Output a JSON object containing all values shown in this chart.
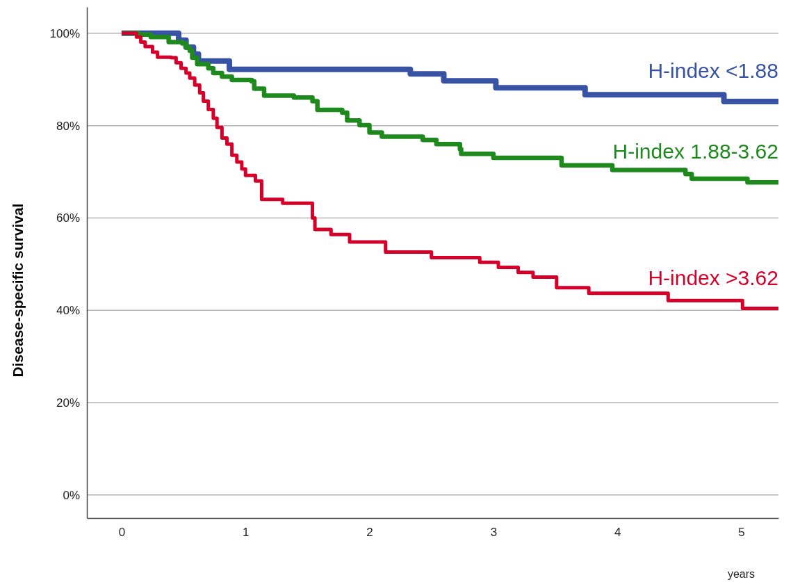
{
  "chart_data": {
    "type": "step",
    "ylabel": "Disease-specific survival",
    "xlabel": "years",
    "xlim": [
      -0.28,
      5.3
    ],
    "xticks": [
      0,
      1,
      2,
      3,
      4,
      5
    ],
    "ylim": [
      -5,
      105.7
    ],
    "yticks": [
      {
        "value": 0,
        "label": "0%"
      },
      {
        "value": 20,
        "label": "20%"
      },
      {
        "value": 40,
        "label": "40%"
      },
      {
        "value": 60,
        "label": "60%"
      },
      {
        "value": 80,
        "label": "80%"
      },
      {
        "value": 100,
        "label": "100%"
      }
    ],
    "grid": "y",
    "legend": false,
    "marker": "none",
    "line_style": "solid",
    "series": [
      {
        "name": "H-index <1.88",
        "color": "#3953a4",
        "x": [
          0,
          0.46,
          0.52,
          0.58,
          0.62,
          0.87,
          2.33,
          2.6,
          3.02,
          3.74,
          4.86,
          5.3
        ],
        "values": [
          100,
          98.5,
          97,
          95.5,
          94,
          92.2,
          91.2,
          89.7,
          88.2,
          86.7,
          85.2,
          85.2
        ]
      },
      {
        "name": "H-index 1.88-3.62",
        "color": "#1e8a1e",
        "x": [
          0,
          0.14,
          0.235,
          0.38,
          0.49,
          0.52,
          0.55,
          0.57,
          0.61,
          0.7,
          0.74,
          0.81,
          0.89,
          1.05,
          1.07,
          1.15,
          1.39,
          1.54,
          1.58,
          1.78,
          1.82,
          1.92,
          2.0,
          2.1,
          2.43,
          2.54,
          2.73,
          2.74,
          3.0,
          3.55,
          3.96,
          4.55,
          4.6,
          5.05,
          5.3
        ],
        "values": [
          100,
          99.7,
          99.2,
          98.1,
          97.8,
          96.9,
          96.2,
          94.7,
          93.3,
          92.4,
          91.4,
          90.6,
          89.9,
          89.6,
          88,
          86.5,
          86.1,
          85.3,
          83.4,
          82.8,
          81.1,
          80.1,
          78.5,
          77.6,
          76.9,
          76,
          74.9,
          73.9,
          73,
          71.4,
          70.4,
          69.5,
          68.5,
          67.7,
          67.7
        ]
      },
      {
        "name": "H-index >3.62",
        "color": "#d4002a",
        "x": [
          0,
          0.12,
          0.155,
          0.19,
          0.25,
          0.29,
          0.4,
          0.44,
          0.48,
          0.52,
          0.55,
          0.59,
          0.63,
          0.66,
          0.7,
          0.74,
          0.77,
          0.81,
          0.85,
          0.89,
          0.93,
          0.97,
          1.0,
          1.08,
          1.13,
          1.3,
          1.54,
          1.56,
          1.69,
          1.84,
          2.13,
          2.5,
          2.89,
          3.04,
          3.2,
          3.32,
          3.51,
          3.77,
          4.41,
          5.01,
          5.3
        ],
        "values": [
          100,
          99.2,
          98.1,
          97.1,
          95.9,
          94.8,
          94.7,
          93.6,
          92.4,
          91.4,
          90.3,
          88.8,
          87.1,
          85.3,
          83.5,
          81.6,
          79.6,
          77.3,
          76,
          73.6,
          72.1,
          70.6,
          69.2,
          68,
          64,
          63.2,
          60,
          57.5,
          56.4,
          54.8,
          52.6,
          51.4,
          50.4,
          49.3,
          48.2,
          47.2,
          44.9,
          43.7,
          42.1,
          40.4,
          40.4
        ]
      }
    ]
  }
}
